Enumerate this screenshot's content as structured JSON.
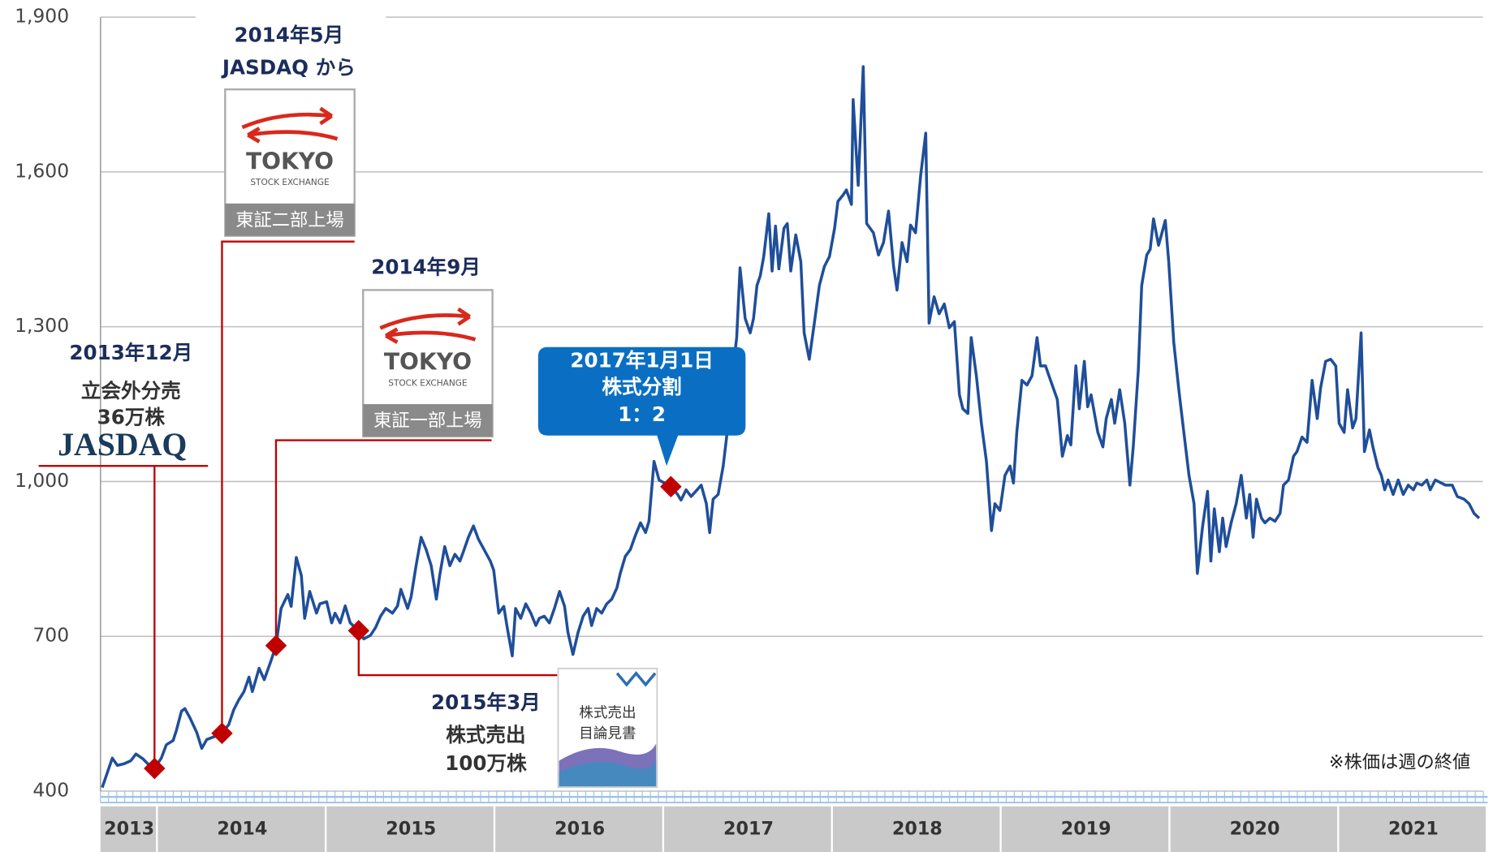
{
  "chart_data": {
    "type": "line",
    "note": "※株価は週の終値",
    "color": "#1f4e9a",
    "xlim": [
      2013.66,
      2021.88
    ],
    "xticks": [
      2013,
      2014,
      2015,
      2016,
      2017,
      2018,
      2019,
      2020,
      2021
    ],
    "ylim": [
      400,
      1900
    ],
    "yticks": [
      400,
      700,
      {
        "value": 1000,
        "label": "1,000"
      },
      {
        "value": 1300,
        "label": "1,300"
      },
      {
        "value": 1600,
        "label": "1,600"
      },
      {
        "value": 1900,
        "label": "1,900"
      }
    ],
    "grid": true,
    "x": [
      2013.67,
      2013.73,
      2013.76,
      2013.8,
      2013.84,
      2013.87,
      2013.91,
      2013.94,
      2013.98,
      2014.02,
      2014.05,
      2014.09,
      2014.11,
      2014.14,
      2014.16,
      2014.19,
      2014.23,
      2014.26,
      2014.29,
      2014.33,
      2014.38,
      2014.42,
      2014.45,
      2014.48,
      2014.51,
      2014.54,
      2014.56,
      2014.6,
      2014.63,
      2014.67,
      2014.7,
      2014.73,
      2014.77,
      2014.79,
      2014.82,
      2014.85,
      2014.87,
      2014.9,
      2014.94,
      2014.96,
      2015.0,
      2015.03,
      2015.05,
      2015.08,
      2015.11,
      2015.14,
      2015.19,
      2015.22,
      2015.26,
      2015.29,
      2015.32,
      2015.35,
      2015.39,
      2015.42,
      2015.44,
      2015.48,
      2015.5,
      2015.53,
      2015.56,
      2015.59,
      2015.62,
      2015.65,
      2015.67,
      2015.7,
      2015.73,
      2015.76,
      2015.79,
      2015.81,
      2015.84,
      2015.87,
      2015.9,
      2015.93,
      2015.97,
      2015.99,
      2016.02,
      2016.05,
      2016.07,
      2016.1,
      2016.12,
      2016.15,
      2016.18,
      2016.21,
      2016.24,
      2016.26,
      2016.29,
      2016.32,
      2016.35,
      2016.38,
      2016.41,
      2016.43,
      2016.46,
      2016.49,
      2016.52,
      2016.55,
      2016.57,
      2016.6,
      2016.63,
      2016.66,
      2016.69,
      2016.72,
      2016.74,
      2016.77,
      2016.8,
      2016.83,
      2016.86,
      2016.89,
      2016.91,
      2016.94,
      2016.97,
      2017.04,
      2017.08,
      2017.1,
      2017.13,
      2017.16,
      2017.19,
      2017.22,
      2017.25,
      2017.27,
      2017.29,
      2017.32,
      2017.35,
      2017.37,
      2017.4,
      2017.43,
      2017.45,
      2017.48,
      2017.51,
      2017.53,
      2017.55,
      2017.57,
      2017.59,
      2017.62,
      2017.64,
      2017.66,
      2017.68,
      2017.71,
      2017.73,
      2017.75,
      2017.78,
      2017.81,
      2017.83,
      2017.86,
      2017.89,
      2017.92,
      2017.95,
      2017.98,
      2018.01,
      2018.03,
      2018.06,
      2018.08,
      2018.11,
      2018.12,
      2018.15,
      2018.18,
      2018.2,
      2018.24,
      2018.27,
      2018.3,
      2018.33,
      2018.36,
      2018.38,
      2018.41,
      2018.44,
      2018.46,
      2018.49,
      2018.52,
      2018.55,
      2018.57,
      2018.6,
      2018.63,
      2018.66,
      2018.69,
      2018.72,
      2018.75,
      2018.77,
      2018.8,
      2018.82,
      2018.85,
      2018.88,
      2018.91,
      2018.94,
      2018.96,
      2018.99,
      2019.02,
      2019.05,
      2019.07,
      2019.09,
      2019.12,
      2019.15,
      2019.18,
      2019.21,
      2019.23,
      2019.26,
      2019.29,
      2019.33,
      2019.36,
      2019.39,
      2019.41,
      2019.44,
      2019.46,
      2019.49,
      2019.51,
      2019.53,
      2019.57,
      2019.6,
      2019.62,
      2019.65,
      2019.67,
      2019.7,
      2019.73,
      2019.76,
      2019.78,
      2019.81,
      2019.83,
      2019.86,
      2019.88,
      2019.9,
      2019.93,
      2019.95,
      2019.97,
      2019.99,
      2020.02,
      2020.05,
      2020.08,
      2020.11,
      2020.14,
      2020.16,
      2020.19,
      2020.22,
      2020.24,
      2020.26,
      2020.29,
      2020.31,
      2020.33,
      2020.36,
      2020.39,
      2020.42,
      2020.45,
      2020.47,
      2020.49,
      2020.51,
      2020.54,
      2020.56,
      2020.59,
      2020.62,
      2020.65,
      2020.67,
      2020.7,
      2020.73,
      2020.75,
      2020.78,
      2020.81,
      2020.84,
      2020.87,
      2020.89,
      2020.92,
      2020.95,
      2020.98,
      2021.0,
      2021.03,
      2021.05,
      2021.08,
      2021.1,
      2021.13,
      2021.15,
      2021.18,
      2021.2,
      2021.23,
      2021.25,
      2021.27,
      2021.29,
      2021.32,
      2021.35,
      2021.38,
      2021.41,
      2021.44,
      2021.46,
      2021.49,
      2021.52,
      2021.54,
      2021.57,
      2021.63,
      2021.67,
      2021.7,
      2021.74,
      2021.77,
      2021.8,
      2021.83
    ],
    "values": [
      407,
      464,
      450,
      453,
      459,
      472,
      463,
      453,
      444,
      464,
      490,
      498,
      518,
      555,
      560,
      542,
      514,
      483,
      500,
      505,
      512,
      529,
      558,
      577,
      593,
      621,
      593,
      638,
      616,
      652,
      682,
      754,
      781,
      758,
      853,
      818,
      735,
      787,
      745,
      763,
      767,
      726,
      745,
      726,
      759,
      726,
      711,
      695,
      702,
      717,
      739,
      754,
      745,
      759,
      791,
      754,
      776,
      837,
      892,
      868,
      837,
      772,
      818,
      874,
      837,
      859,
      846,
      864,
      892,
      914,
      888,
      870,
      846,
      828,
      745,
      758,
      717,
      662,
      754,
      735,
      763,
      745,
      721,
      735,
      739,
      726,
      754,
      787,
      758,
      708,
      665,
      708,
      739,
      754,
      721,
      754,
      745,
      763,
      772,
      794,
      822,
      855,
      868,
      896,
      920,
      901,
      923,
      1039,
      1003,
      990,
      975,
      964,
      984,
      971,
      982,
      993,
      957,
      901,
      966,
      975,
      1030,
      1086,
      1196,
      1279,
      1414,
      1316,
      1288,
      1316,
      1380,
      1399,
      1436,
      1519,
      1408,
      1495,
      1412,
      1491,
      1500,
      1408,
      1478,
      1426,
      1288,
      1237,
      1307,
      1380,
      1417,
      1436,
      1491,
      1543,
      1555,
      1565,
      1537,
      1740,
      1574,
      1804,
      1500,
      1482,
      1439,
      1463,
      1524,
      1417,
      1371,
      1463,
      1426,
      1497,
      1482,
      1592,
      1675,
      1307,
      1358,
      1325,
      1344,
      1298,
      1310,
      1168,
      1141,
      1132,
      1279,
      1205,
      1113,
      1039,
      905,
      957,
      944,
      1012,
      1030,
      997,
      1095,
      1196,
      1187,
      1205,
      1279,
      1224,
      1224,
      1196,
      1159,
      1049,
      1089,
      1071,
      1224,
      1141,
      1233,
      1145,
      1168,
      1095,
      1067,
      1122,
      1159,
      1113,
      1178,
      1113,
      993,
      1067,
      1215,
      1380,
      1439,
      1450,
      1509,
      1458,
      1482,
      1506,
      1426,
      1270,
      1178,
      1095,
      1012,
      957,
      822,
      910,
      981,
      846,
      947,
      864,
      929,
      874,
      920,
      957,
      1012,
      929,
      975,
      892,
      966,
      929,
      920,
      929,
      923,
      938,
      993,
      1003,
      1049,
      1058,
      1086,
      1076,
      1196,
      1122,
      1181,
      1233,
      1237,
      1224,
      1113,
      1095,
      1178,
      1104,
      1122,
      1288,
      1058,
      1100,
      1067,
      1027,
      1012,
      984,
      1003,
      975,
      1003,
      975,
      993,
      984,
      997,
      993,
      1003,
      984,
      1003,
      993,
      993,
      971,
      966,
      957,
      938,
      929
    ],
    "events": [
      {
        "x": 2013.98,
        "value": 444,
        "label": [
          "2013年12月",
          "立会外分売",
          "36万株"
        ],
        "logo": [
          "JASDAQ"
        ]
      },
      {
        "x": 2014.38,
        "value": 512,
        "label": [
          "2014年5月",
          "JASDAQ から"
        ],
        "logo": [
          "TOKYO",
          "STOCK EXCHANGE",
          "東証二部上場"
        ]
      },
      {
        "x": 2014.7,
        "value": 682,
        "label": [
          "2014年9月"
        ],
        "logo": [
          "TOKYO",
          "STOCK EXCHANGE",
          "東証一部上場"
        ]
      },
      {
        "x": 2015.19,
        "value": 711,
        "label": [
          "2015年3月",
          "株式売出",
          "100万株"
        ],
        "logo": [
          "株式売出",
          "目論見書"
        ]
      },
      {
        "x": 2017.04,
        "value": 990,
        "label": [
          "2017年1月1日",
          "株式分割",
          "1：2"
        ]
      }
    ]
  }
}
